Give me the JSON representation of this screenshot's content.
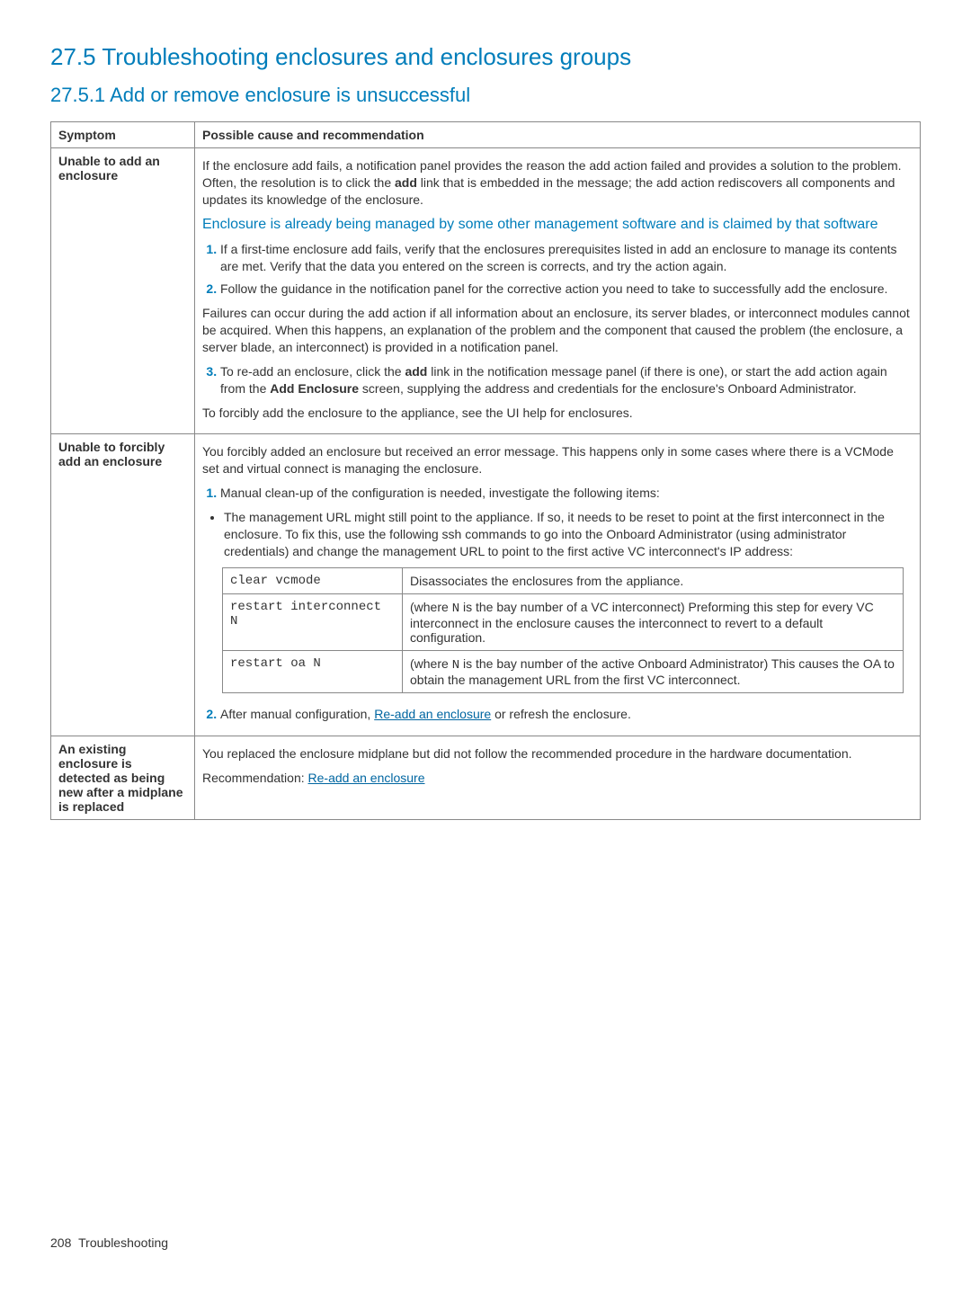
{
  "headings": {
    "h1": "27.5 Troubleshooting enclosures and enclosures groups",
    "h2": "27.5.1 Add or remove enclosure is unsuccessful"
  },
  "table": {
    "headers": {
      "symptom": "Symptom",
      "rec": "Possible cause and recommendation"
    },
    "row1": {
      "symptom": "Unable to add an enclosure",
      "para1_a": "If the enclosure add fails, a notification panel provides the reason the add action failed and provides a solution to the problem. Often, the resolution is to click the ",
      "para1_bold": "add",
      "para1_b": " link that is embedded in the message; the add action rediscovers all components and updates its knowledge of the enclosure.",
      "subhead": "Enclosure is already being managed by some other management software and is claimed by that software",
      "li1": "If a first-time enclosure add fails, verify that the enclosures prerequisites listed in add an enclosure to manage its contents are met. Verify that the data you entered on the screen is corrects, and try the action again.",
      "li2": "Follow the guidance in the notification panel for the corrective action you need to take to successfully add the enclosure.",
      "para2": "Failures can occur during the add action if all information about an enclosure, its server blades, or interconnect modules cannot be acquired. When this happens, an explanation of the problem and the component that caused the problem (the enclosure, a server blade, an interconnect) is provided in a notification panel.",
      "li3_a": "To re-add an enclosure, click the ",
      "li3_b1": "add",
      "li3_c": " link in the notification message panel (if there is one), or start the add action again from the ",
      "li3_b2": "Add Enclosure",
      "li3_d": " screen, supplying the address and credentials for the enclosure's Onboard Administrator.",
      "para3": "To forcibly add the enclosure to the appliance, see the UI help for enclosures."
    },
    "row2": {
      "symptom": "Unable to forcibly add an enclosure",
      "para1": "You forcibly added an enclosure but received an error message. This happens only in some cases where there is a VCMode set and virtual connect is managing the enclosure.",
      "li1": "Manual clean-up of the configuration is needed, investigate the following items:",
      "bullet": "The management URL might still point to the appliance. If so, it needs to be reset to point at the first interconnect in the enclosure. To fix this, use the following ssh commands to go into the Onboard Administrator (using administrator credentials) and change the management URL to point to the first active VC interconnect's IP address:",
      "cmds": {
        "c1": "clear vcmode",
        "d1": "Disassociates the enclosures from the appliance.",
        "c2": "restart interconnect N",
        "d2_a": "(where ",
        "d2_n": "N",
        "d2_b": " is the bay number of a VC interconnect) Preforming this step for every VC interconnect in the enclosure causes the interconnect to revert to a default configuration.",
        "c3": "restart oa N",
        "d3_a": "(where ",
        "d3_n": "N",
        "d3_b": " is the bay number of the active Onboard Administrator) This causes the OA to obtain the management URL from the first VC interconnect."
      },
      "li2_a": "After manual configuration, ",
      "li2_link": "Re-add an enclosure",
      "li2_b": " or refresh the enclosure."
    },
    "row3": {
      "symptom": "An existing enclosure is detected as being new after a midplane is replaced",
      "para1": "You replaced the enclosure midplane but did not follow the recommended procedure in the hardware documentation.",
      "para2_a": "Recommendation: ",
      "para2_link": "Re-add an enclosure"
    }
  },
  "footer": {
    "page": "208",
    "section": "Troubleshooting"
  }
}
